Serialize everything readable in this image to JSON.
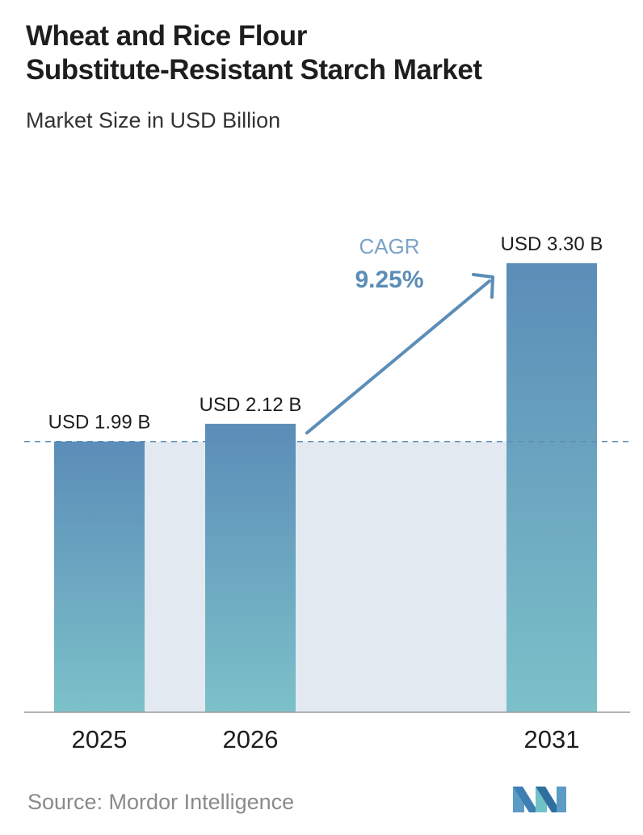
{
  "header": {
    "title_line1": "Wheat and Rice Flour",
    "title_line2": "Substitute-Resistant Starch Market",
    "subtitle": "Market Size in USD Billion"
  },
  "chart_data": {
    "type": "bar",
    "title": "Wheat and Rice Flour Substitute-Resistant Starch Market",
    "subtitle": "Market Size in USD Billion",
    "categories": [
      "2025",
      "2026",
      "2031"
    ],
    "values": [
      1.99,
      2.12,
      3.3
    ],
    "value_labels": [
      "USD 1.99 B",
      "USD 2.12 B",
      "USD 3.30 B"
    ],
    "ylabel": "",
    "xlabel": "",
    "ylim": [
      0,
      3.3
    ],
    "grid": false,
    "reference_line": 1.99,
    "annotation": {
      "label": "CAGR",
      "value": "9.25%"
    },
    "colors": {
      "bar_top": "#5b8db8",
      "bar_bottom": "#7cc1c9",
      "band": "#e2e9f1",
      "arrow": "#5b8db8",
      "cagr_label": "#7aa3c8"
    }
  },
  "footer": {
    "source": "Source: Mordor Intelligence"
  },
  "logo": {
    "icon": "mordor-intelligence-logo-icon"
  }
}
